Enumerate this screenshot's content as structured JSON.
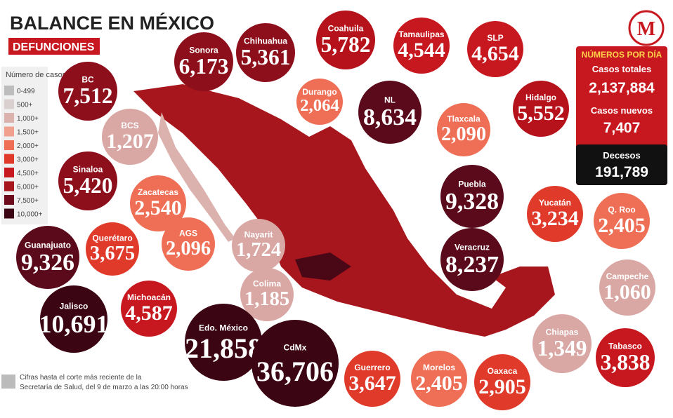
{
  "header": {
    "title": "BALANCE EN MÉXICO",
    "subtitle": "DEFUNCIONES",
    "logo": "M"
  },
  "legend": {
    "title": "Número de casos",
    "items": [
      "0-499",
      "500+",
      "1,000+",
      "1,500+",
      "2,000+",
      "3,000+",
      "4,500+",
      "6,000+",
      "7,500+",
      "10,000+"
    ]
  },
  "panel": {
    "title": "NÚMEROS POR DÍA",
    "rows": [
      {
        "label": "Casos totales",
        "value": "2,137,884"
      },
      {
        "label": "Casos nuevos",
        "value": "7,407"
      },
      {
        "label": "Decesos",
        "value": "191,789"
      }
    ]
  },
  "states": [
    {
      "name": "BC",
      "value": "7,512"
    },
    {
      "name": "Sonora",
      "value": "6,173"
    },
    {
      "name": "Chihuahua",
      "value": "5,361"
    },
    {
      "name": "Coahuila",
      "value": "5,782"
    },
    {
      "name": "Tamaulipas",
      "value": "4,544"
    },
    {
      "name": "SLP",
      "value": "4,654"
    },
    {
      "name": "Durango",
      "value": "2,064"
    },
    {
      "name": "NL",
      "value": "8,634"
    },
    {
      "name": "Hidalgo",
      "value": "5,552"
    },
    {
      "name": "Tlaxcala",
      "value": "2,090"
    },
    {
      "name": "BCS",
      "value": "1,207"
    },
    {
      "name": "Sinaloa",
      "value": "5,420"
    },
    {
      "name": "Zacatecas",
      "value": "2,540"
    },
    {
      "name": "Puebla",
      "value": "9,328"
    },
    {
      "name": "Yucatán",
      "value": "3,234"
    },
    {
      "name": "Q. Roo",
      "value": "2,405"
    },
    {
      "name": "Querétaro",
      "value": "3,675"
    },
    {
      "name": "AGS",
      "value": "2,096"
    },
    {
      "name": "Nayarit",
      "value": "1,724"
    },
    {
      "name": "Guanajuato",
      "value": "9,326"
    },
    {
      "name": "Veracruz",
      "value": "8,237"
    },
    {
      "name": "Campeche",
      "value": "1,060"
    },
    {
      "name": "Colima",
      "value": "1,185"
    },
    {
      "name": "Michoacán",
      "value": "4,587"
    },
    {
      "name": "Jalisco",
      "value": "10,691"
    },
    {
      "name": "Edo. México",
      "value": "21,858"
    },
    {
      "name": "CdMx",
      "value": "36,706"
    },
    {
      "name": "Chiapas",
      "value": "1,349"
    },
    {
      "name": "Tabasco",
      "value": "3,838"
    },
    {
      "name": "Guerrero",
      "value": "3,647"
    },
    {
      "name": "Morelos",
      "value": "2,405"
    },
    {
      "name": "Oaxaca",
      "value": "2,905"
    }
  ],
  "footnote": [
    "Cifras hasta el corte más reciente de la",
    "Secretaría de Salud, del 9 de marzo a las 20:00 horas"
  ]
}
